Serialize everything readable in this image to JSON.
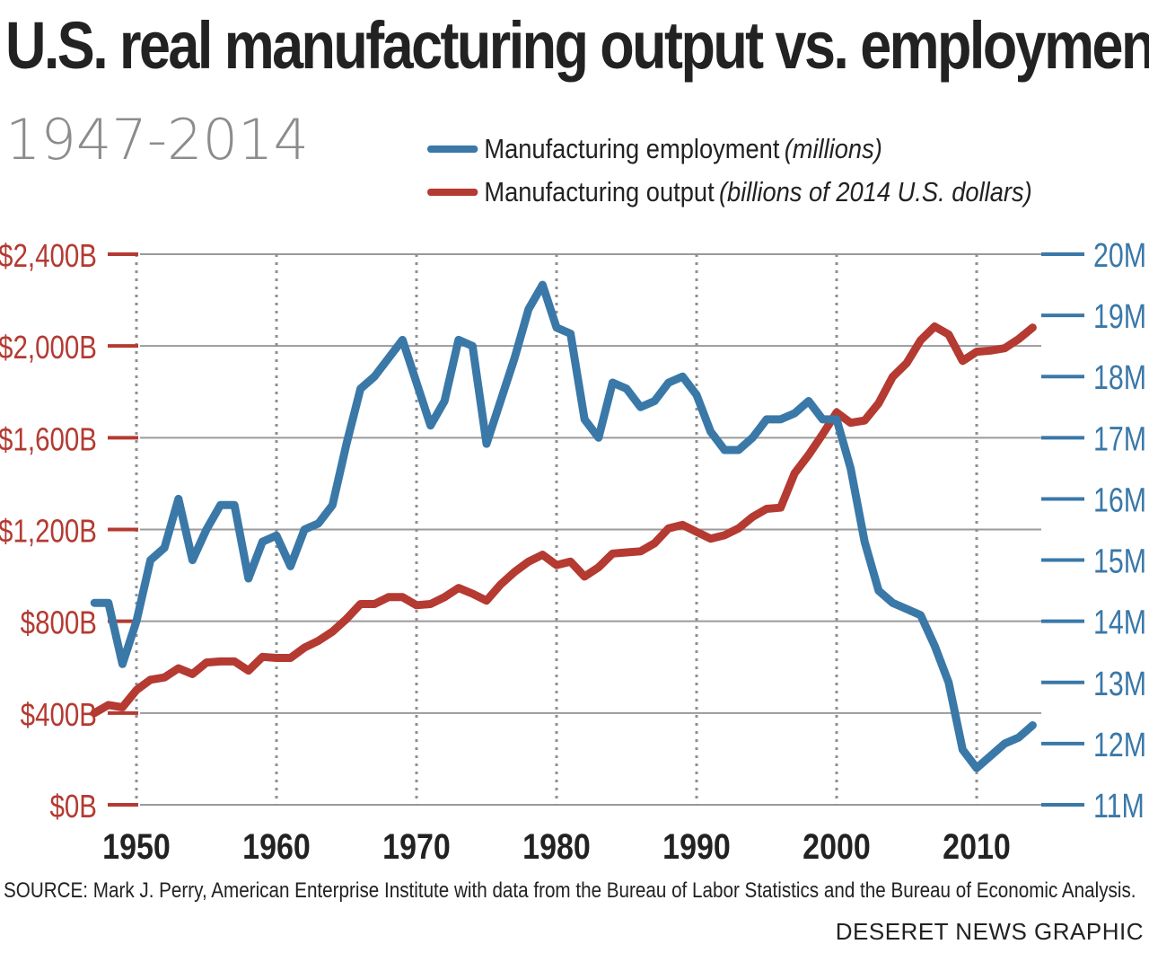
{
  "header": {
    "title": "U.S. real manufacturing output vs. employment",
    "subtitle": "1947-2014"
  },
  "legend": {
    "items": [
      {
        "label": "Manufacturing employment",
        "unit": "(millions)",
        "color": "#3a78a8"
      },
      {
        "label": "Manufacturing output",
        "unit": "(billions of 2014 U.S. dollars)",
        "color": "#b43a32"
      }
    ]
  },
  "footer": {
    "source": "SOURCE: Mark J. Perry, American Enterprise Institute with data from the Bureau of Labor Statistics and the Bureau of Economic Analysis.",
    "credit": "DESERET NEWS GRAPHIC"
  },
  "chart_data": {
    "type": "line",
    "title": "U.S. real manufacturing output vs. employment",
    "subtitle": "1947-2014",
    "x_ticks": [
      "1950",
      "1960",
      "1970",
      "1980",
      "1990",
      "2000",
      "2010"
    ],
    "xlim": [
      1946,
      2015
    ],
    "left_axis": {
      "ylim": [
        0,
        2400
      ],
      "ticks": [
        0,
        400,
        800,
        1200,
        1600,
        2000,
        2400
      ],
      "tick_labels": [
        "$0B",
        "$400B",
        "$800B",
        "$1,200B",
        "$1,600B",
        "$2,000B",
        "$2,400B"
      ],
      "color": "#b43a32"
    },
    "right_axis": {
      "ylim": [
        11,
        20
      ],
      "ticks": [
        11,
        12,
        13,
        14,
        15,
        16,
        17,
        18,
        19,
        20
      ],
      "tick_labels": [
        "11M",
        "12M",
        "13M",
        "14M",
        "15M",
        "16M",
        "17M",
        "18M",
        "19M",
        "20M"
      ],
      "color": "#3a78a8"
    },
    "grid": {
      "horizontal": true,
      "vertical_dotted": true
    },
    "legend_position": "top",
    "x": [
      1947,
      1948,
      1949,
      1950,
      1951,
      1952,
      1953,
      1954,
      1955,
      1956,
      1957,
      1958,
      1959,
      1960,
      1961,
      1962,
      1963,
      1964,
      1965,
      1966,
      1967,
      1968,
      1969,
      1970,
      1971,
      1972,
      1973,
      1974,
      1975,
      1976,
      1977,
      1978,
      1979,
      1980,
      1981,
      1982,
      1983,
      1984,
      1985,
      1986,
      1987,
      1988,
      1989,
      1990,
      1991,
      1992,
      1993,
      1994,
      1995,
      1996,
      1997,
      1998,
      1999,
      2000,
      2001,
      2002,
      2003,
      2004,
      2005,
      2006,
      2007,
      2008,
      2009,
      2010,
      2011,
      2012,
      2013,
      2014
    ],
    "series": [
      {
        "name": "Manufacturing employment",
        "axis": "right",
        "color": "#3a78a8",
        "values": [
          14.3,
          14.3,
          13.3,
          14.0,
          15.0,
          15.2,
          16.0,
          15.0,
          15.5,
          15.9,
          15.9,
          14.7,
          15.3,
          15.4,
          14.9,
          15.5,
          15.6,
          15.9,
          16.9,
          17.8,
          18.0,
          18.3,
          18.6,
          17.9,
          17.2,
          17.6,
          18.6,
          18.5,
          16.9,
          17.6,
          18.3,
          19.1,
          19.5,
          18.8,
          18.7,
          17.3,
          17.0,
          17.9,
          17.8,
          17.5,
          17.6,
          17.9,
          18.0,
          17.7,
          17.1,
          16.8,
          16.8,
          17.0,
          17.3,
          17.3,
          17.4,
          17.6,
          17.3,
          17.3,
          16.5,
          15.3,
          14.5,
          14.3,
          14.2,
          14.1,
          13.6,
          13.0,
          11.9,
          11.6,
          11.8,
          12.0,
          12.1,
          12.3
        ]
      },
      {
        "name": "Manufacturing output",
        "axis": "left",
        "color": "#b43a32",
        "values": [
          400,
          435,
          425,
          500,
          545,
          555,
          595,
          570,
          620,
          625,
          625,
          585,
          645,
          640,
          640,
          685,
          715,
          755,
          810,
          875,
          875,
          905,
          905,
          870,
          875,
          905,
          945,
          920,
          890,
          960,
          1015,
          1060,
          1090,
          1045,
          1060,
          995,
          1035,
          1095,
          1100,
          1105,
          1140,
          1205,
          1220,
          1190,
          1160,
          1175,
          1205,
          1255,
          1290,
          1295,
          1445,
          1525,
          1615,
          1710,
          1665,
          1675,
          1750,
          1865,
          1925,
          2025,
          2085,
          2050,
          1935,
          1975,
          1980,
          1990,
          2030,
          2080
        ]
      }
    ]
  }
}
